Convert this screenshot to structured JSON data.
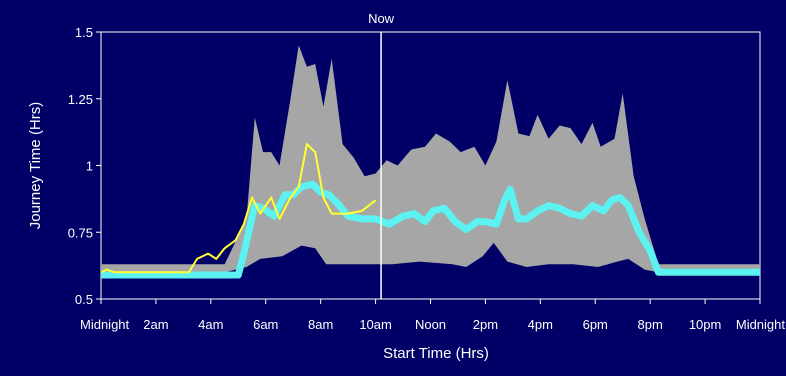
{
  "colors": {
    "background": "#000066",
    "plot_background": "#000066",
    "band": "#a6a6a6",
    "typical": "#5df2f2",
    "today": "#ffff33",
    "now_line": "#ffffff",
    "axis": "#ffffff",
    "text": "#ffffff"
  },
  "chart_data": {
    "type": "area",
    "title": "",
    "xlabel": "Start Time (Hrs)",
    "ylabel": "Journey Time (Hrs)",
    "xlim": [
      0,
      24
    ],
    "ylim": [
      0.5,
      1.5
    ],
    "grid": false,
    "legend": "none",
    "x_ticks": [
      {
        "x": 0,
        "label": "Midnight"
      },
      {
        "x": 2,
        "label": "2am"
      },
      {
        "x": 4,
        "label": "4am"
      },
      {
        "x": 6,
        "label": "6am"
      },
      {
        "x": 8,
        "label": "8am"
      },
      {
        "x": 10,
        "label": "10am"
      },
      {
        "x": 12,
        "label": "Noon"
      },
      {
        "x": 14,
        "label": "2pm"
      },
      {
        "x": 16,
        "label": "4pm"
      },
      {
        "x": 18,
        "label": "6pm"
      },
      {
        "x": 20,
        "label": "8pm"
      },
      {
        "x": 22,
        "label": "10pm"
      },
      {
        "x": 24,
        "label": "Midnight"
      }
    ],
    "y_ticks": [
      {
        "y": 0.5,
        "label": "0.5"
      },
      {
        "y": 0.75,
        "label": "0.75"
      },
      {
        "y": 1,
        "label": "1"
      },
      {
        "y": 1.25,
        "label": "1.25"
      },
      {
        "y": 1.5,
        "label": "1.5"
      }
    ],
    "marker": {
      "x": 10.2,
      "label": "Now"
    },
    "series": [
      {
        "kind": "band",
        "upper": [
          [
            0,
            0.63
          ],
          [
            4.5,
            0.63
          ],
          [
            5.3,
            0.8
          ],
          [
            5.6,
            1.18
          ],
          [
            5.9,
            1.05
          ],
          [
            6.2,
            1.05
          ],
          [
            6.5,
            1.0
          ],
          [
            6.9,
            1.25
          ],
          [
            7.2,
            1.45
          ],
          [
            7.5,
            1.37
          ],
          [
            7.8,
            1.38
          ],
          [
            8.1,
            1.22
          ],
          [
            8.4,
            1.4
          ],
          [
            8.8,
            1.08
          ],
          [
            9.2,
            1.03
          ],
          [
            9.6,
            0.96
          ],
          [
            10.0,
            0.97
          ],
          [
            10.4,
            1.02
          ],
          [
            10.8,
            1.0
          ],
          [
            11.3,
            1.06
          ],
          [
            11.8,
            1.07
          ],
          [
            12.2,
            1.12
          ],
          [
            12.7,
            1.09
          ],
          [
            13.1,
            1.05
          ],
          [
            13.6,
            1.07
          ],
          [
            14.0,
            1.0
          ],
          [
            14.4,
            1.09
          ],
          [
            14.8,
            1.32
          ],
          [
            15.2,
            1.12
          ],
          [
            15.6,
            1.11
          ],
          [
            15.9,
            1.19
          ],
          [
            16.3,
            1.1
          ],
          [
            16.7,
            1.15
          ],
          [
            17.1,
            1.14
          ],
          [
            17.5,
            1.08
          ],
          [
            17.9,
            1.16
          ],
          [
            18.2,
            1.07
          ],
          [
            18.7,
            1.1
          ],
          [
            19.0,
            1.27
          ],
          [
            19.4,
            0.96
          ],
          [
            19.8,
            0.8
          ],
          [
            20.3,
            0.63
          ],
          [
            24,
            0.63
          ]
        ],
        "lower": [
          [
            0,
            0.6
          ],
          [
            4.5,
            0.6
          ],
          [
            5.3,
            0.62
          ],
          [
            5.8,
            0.65
          ],
          [
            6.6,
            0.66
          ],
          [
            7.3,
            0.7
          ],
          [
            7.8,
            0.69
          ],
          [
            8.2,
            0.63
          ],
          [
            9.4,
            0.63
          ],
          [
            10.6,
            0.63
          ],
          [
            11.6,
            0.64
          ],
          [
            12.8,
            0.63
          ],
          [
            13.3,
            0.62
          ],
          [
            13.9,
            0.66
          ],
          [
            14.3,
            0.71
          ],
          [
            14.8,
            0.64
          ],
          [
            15.5,
            0.62
          ],
          [
            16.3,
            0.63
          ],
          [
            17.2,
            0.63
          ],
          [
            18.1,
            0.62
          ],
          [
            18.8,
            0.64
          ],
          [
            19.2,
            0.65
          ],
          [
            19.8,
            0.61
          ],
          [
            20.3,
            0.6
          ],
          [
            24,
            0.6
          ]
        ]
      },
      {
        "kind": "line",
        "points": [
          [
            0,
            0.59
          ],
          [
            5.0,
            0.59
          ],
          [
            5.2,
            0.67
          ],
          [
            5.6,
            0.85
          ],
          [
            5.9,
            0.84
          ],
          [
            6.3,
            0.81
          ],
          [
            6.7,
            0.89
          ],
          [
            7.0,
            0.89
          ],
          [
            7.3,
            0.92
          ],
          [
            7.7,
            0.93
          ],
          [
            8.0,
            0.9
          ],
          [
            8.3,
            0.89
          ],
          [
            8.6,
            0.86
          ],
          [
            9.0,
            0.81
          ],
          [
            9.5,
            0.8
          ],
          [
            10.0,
            0.8
          ],
          [
            10.5,
            0.78
          ],
          [
            11.0,
            0.81
          ],
          [
            11.4,
            0.82
          ],
          [
            11.8,
            0.79
          ],
          [
            12.1,
            0.83
          ],
          [
            12.5,
            0.84
          ],
          [
            12.9,
            0.79
          ],
          [
            13.3,
            0.76
          ],
          [
            13.7,
            0.79
          ],
          [
            14.0,
            0.79
          ],
          [
            14.4,
            0.78
          ],
          [
            14.7,
            0.87
          ],
          [
            14.9,
            0.91
          ],
          [
            15.2,
            0.8
          ],
          [
            15.5,
            0.8
          ],
          [
            15.9,
            0.83
          ],
          [
            16.3,
            0.85
          ],
          [
            16.7,
            0.84
          ],
          [
            17.1,
            0.82
          ],
          [
            17.5,
            0.81
          ],
          [
            17.9,
            0.85
          ],
          [
            18.3,
            0.83
          ],
          [
            18.6,
            0.87
          ],
          [
            18.9,
            0.88
          ],
          [
            19.2,
            0.85
          ],
          [
            19.6,
            0.75
          ],
          [
            20.0,
            0.68
          ],
          [
            20.3,
            0.6
          ],
          [
            24,
            0.6
          ]
        ]
      },
      {
        "kind": "line",
        "points": [
          [
            0,
            0.6
          ],
          [
            0.2,
            0.61
          ],
          [
            0.5,
            0.6
          ],
          [
            3.2,
            0.6
          ],
          [
            3.5,
            0.65
          ],
          [
            3.9,
            0.67
          ],
          [
            4.2,
            0.65
          ],
          [
            4.5,
            0.69
          ],
          [
            4.9,
            0.72
          ],
          [
            5.2,
            0.78
          ],
          [
            5.5,
            0.88
          ],
          [
            5.8,
            0.82
          ],
          [
            6.2,
            0.88
          ],
          [
            6.5,
            0.8
          ],
          [
            6.9,
            0.88
          ],
          [
            7.2,
            0.92
          ],
          [
            7.5,
            1.08
          ],
          [
            7.8,
            1.05
          ],
          [
            8.1,
            0.88
          ],
          [
            8.4,
            0.82
          ],
          [
            9.0,
            0.82
          ],
          [
            9.5,
            0.83
          ],
          [
            10.0,
            0.87
          ]
        ]
      }
    ]
  }
}
